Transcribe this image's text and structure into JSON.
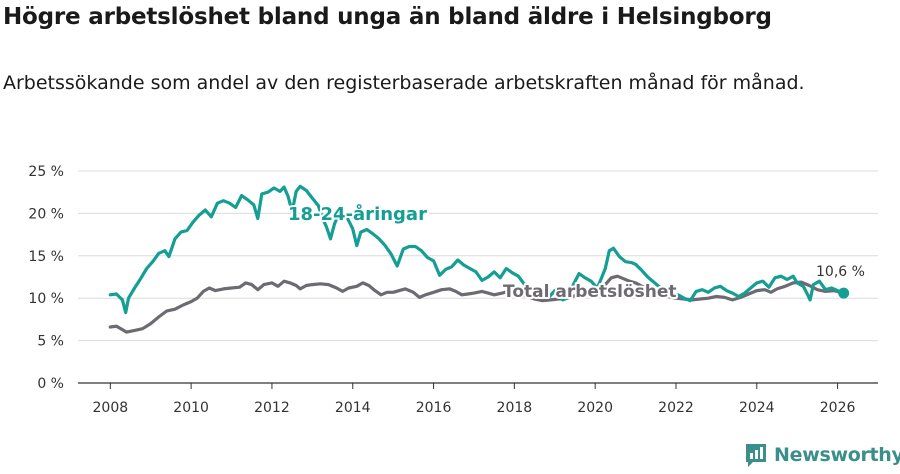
{
  "header": {
    "title": "Högre arbetslöshet bland unga än bland äldre i Helsingborg",
    "subtitle": "Arbetssökande som andel av den registerbaserade arbetskraften månad för månad."
  },
  "brand": {
    "name": "Newsworthy",
    "icon": "bar-chart-logo-icon"
  },
  "chart_data": {
    "type": "line",
    "title": "",
    "xlabel": "",
    "ylabel": "",
    "xlim": [
      2007.2,
      2027.0
    ],
    "ylim": [
      0,
      25
    ],
    "grid": true,
    "legend": "inline-labels",
    "x_ticks": [
      {
        "value": 2008,
        "label": "2008"
      },
      {
        "value": 2010,
        "label": "2010"
      },
      {
        "value": 2012,
        "label": "2012"
      },
      {
        "value": 2014,
        "label": "2014"
      },
      {
        "value": 2016,
        "label": "2016"
      },
      {
        "value": 2018,
        "label": "2018"
      },
      {
        "value": 2020,
        "label": "2020"
      },
      {
        "value": 2022,
        "label": "2022"
      },
      {
        "value": 2024,
        "label": "2024"
      },
      {
        "value": 2026,
        "label": "2026"
      }
    ],
    "y_ticks": [
      {
        "value": 0,
        "label": "0 %"
      },
      {
        "value": 5,
        "label": "5 %"
      },
      {
        "value": 10,
        "label": "10 %"
      },
      {
        "value": 15,
        "label": "15 %"
      },
      {
        "value": 20,
        "label": "20 %"
      },
      {
        "value": 25,
        "label": "25 %"
      }
    ],
    "series": [
      {
        "name": "18-24-åringar",
        "color": "#149e94",
        "end_label": "10,6 %",
        "points": [
          [
            2008.0,
            10.4
          ],
          [
            2008.15,
            10.5
          ],
          [
            2008.3,
            9.8
          ],
          [
            2008.38,
            8.3
          ],
          [
            2008.45,
            10.0
          ],
          [
            2008.6,
            11.2
          ],
          [
            2008.75,
            12.3
          ],
          [
            2008.9,
            13.5
          ],
          [
            2009.05,
            14.3
          ],
          [
            2009.2,
            15.3
          ],
          [
            2009.35,
            15.6
          ],
          [
            2009.45,
            14.9
          ],
          [
            2009.6,
            17.0
          ],
          [
            2009.75,
            17.8
          ],
          [
            2009.9,
            18.0
          ],
          [
            2010.05,
            19.0
          ],
          [
            2010.2,
            19.8
          ],
          [
            2010.35,
            20.4
          ],
          [
            2010.5,
            19.6
          ],
          [
            2010.65,
            21.2
          ],
          [
            2010.8,
            21.5
          ],
          [
            2010.95,
            21.2
          ],
          [
            2011.1,
            20.7
          ],
          [
            2011.25,
            22.1
          ],
          [
            2011.4,
            21.6
          ],
          [
            2011.55,
            21.0
          ],
          [
            2011.65,
            19.4
          ],
          [
            2011.75,
            22.3
          ],
          [
            2011.9,
            22.5
          ],
          [
            2012.05,
            23.0
          ],
          [
            2012.2,
            22.6
          ],
          [
            2012.3,
            23.1
          ],
          [
            2012.4,
            22.0
          ],
          [
            2012.5,
            20.2
          ],
          [
            2012.6,
            22.6
          ],
          [
            2012.7,
            23.2
          ],
          [
            2012.85,
            22.7
          ],
          [
            2013.0,
            21.8
          ],
          [
            2013.15,
            20.9
          ],
          [
            2013.25,
            19.5
          ],
          [
            2013.35,
            18.4
          ],
          [
            2013.45,
            17.0
          ],
          [
            2013.55,
            18.8
          ],
          [
            2013.7,
            20.4
          ],
          [
            2013.85,
            19.6
          ],
          [
            2014.0,
            18.2
          ],
          [
            2014.1,
            16.2
          ],
          [
            2014.2,
            17.8
          ],
          [
            2014.35,
            18.1
          ],
          [
            2014.5,
            17.6
          ],
          [
            2014.65,
            17.0
          ],
          [
            2014.8,
            16.2
          ],
          [
            2014.95,
            15.2
          ],
          [
            2015.1,
            13.8
          ],
          [
            2015.25,
            15.8
          ],
          [
            2015.4,
            16.1
          ],
          [
            2015.55,
            16.1
          ],
          [
            2015.7,
            15.6
          ],
          [
            2015.85,
            14.8
          ],
          [
            2016.0,
            14.4
          ],
          [
            2016.15,
            12.7
          ],
          [
            2016.3,
            13.4
          ],
          [
            2016.45,
            13.7
          ],
          [
            2016.6,
            14.5
          ],
          [
            2016.75,
            13.9
          ],
          [
            2016.9,
            13.5
          ],
          [
            2017.05,
            13.1
          ],
          [
            2017.2,
            12.1
          ],
          [
            2017.35,
            12.5
          ],
          [
            2017.5,
            13.1
          ],
          [
            2017.65,
            12.4
          ],
          [
            2017.8,
            13.5
          ],
          [
            2017.95,
            13.0
          ],
          [
            2018.1,
            12.6
          ],
          [
            2018.25,
            11.6
          ],
          [
            2018.4,
            11.2
          ],
          [
            2018.55,
            10.8
          ],
          [
            2018.7,
            10.4
          ],
          [
            2018.85,
            10.1
          ],
          [
            2019.0,
            10.9
          ],
          [
            2019.1,
            10.2
          ],
          [
            2019.2,
            9.8
          ],
          [
            2019.3,
            10.0
          ],
          [
            2019.45,
            11.5
          ],
          [
            2019.6,
            12.9
          ],
          [
            2019.75,
            12.4
          ],
          [
            2019.9,
            12.0
          ],
          [
            2020.05,
            11.2
          ],
          [
            2020.15,
            12.3
          ],
          [
            2020.25,
            13.5
          ],
          [
            2020.35,
            15.6
          ],
          [
            2020.45,
            15.9
          ],
          [
            2020.6,
            14.9
          ],
          [
            2020.75,
            14.3
          ],
          [
            2020.9,
            14.2
          ],
          [
            2021.0,
            14.0
          ],
          [
            2021.15,
            13.3
          ],
          [
            2021.3,
            12.5
          ],
          [
            2021.45,
            11.9
          ],
          [
            2021.6,
            11.3
          ],
          [
            2021.75,
            10.6
          ],
          [
            2021.9,
            10.2
          ],
          [
            2022.05,
            10.4
          ],
          [
            2022.2,
            10.0
          ],
          [
            2022.35,
            9.7
          ],
          [
            2022.5,
            10.8
          ],
          [
            2022.65,
            11.0
          ],
          [
            2022.8,
            10.7
          ],
          [
            2022.95,
            11.2
          ],
          [
            2023.1,
            11.4
          ],
          [
            2023.25,
            10.9
          ],
          [
            2023.4,
            10.6
          ],
          [
            2023.55,
            10.2
          ],
          [
            2023.7,
            10.6
          ],
          [
            2023.85,
            11.2
          ],
          [
            2024.0,
            11.8
          ],
          [
            2024.15,
            12.0
          ],
          [
            2024.3,
            11.3
          ],
          [
            2024.45,
            12.4
          ],
          [
            2024.6,
            12.6
          ],
          [
            2024.75,
            12.2
          ],
          [
            2024.9,
            12.6
          ],
          [
            2025.0,
            11.8
          ],
          [
            2025.15,
            11.4
          ],
          [
            2025.25,
            10.5
          ],
          [
            2025.32,
            9.8
          ],
          [
            2025.4,
            11.6
          ],
          [
            2025.55,
            12.0
          ],
          [
            2025.7,
            11.0
          ],
          [
            2025.85,
            11.2
          ],
          [
            2026.0,
            10.9
          ],
          [
            2026.15,
            10.6
          ]
        ]
      },
      {
        "name": "Total arbetslöshet",
        "color": "#6e6a72",
        "points": [
          [
            2008.0,
            6.6
          ],
          [
            2008.15,
            6.7
          ],
          [
            2008.3,
            6.3
          ],
          [
            2008.4,
            6.0
          ],
          [
            2008.6,
            6.2
          ],
          [
            2008.8,
            6.4
          ],
          [
            2009.0,
            7.0
          ],
          [
            2009.2,
            7.8
          ],
          [
            2009.4,
            8.5
          ],
          [
            2009.6,
            8.7
          ],
          [
            2009.8,
            9.2
          ],
          [
            2010.0,
            9.6
          ],
          [
            2010.15,
            10.0
          ],
          [
            2010.3,
            10.8
          ],
          [
            2010.45,
            11.2
          ],
          [
            2010.6,
            10.9
          ],
          [
            2010.8,
            11.1
          ],
          [
            2011.0,
            11.2
          ],
          [
            2011.2,
            11.3
          ],
          [
            2011.35,
            11.8
          ],
          [
            2011.5,
            11.6
          ],
          [
            2011.65,
            11.0
          ],
          [
            2011.8,
            11.6
          ],
          [
            2012.0,
            11.8
          ],
          [
            2012.15,
            11.4
          ],
          [
            2012.3,
            12.0
          ],
          [
            2012.45,
            11.8
          ],
          [
            2012.6,
            11.5
          ],
          [
            2012.7,
            11.1
          ],
          [
            2012.85,
            11.5
          ],
          [
            2013.0,
            11.6
          ],
          [
            2013.2,
            11.7
          ],
          [
            2013.4,
            11.6
          ],
          [
            2013.6,
            11.2
          ],
          [
            2013.75,
            10.8
          ],
          [
            2013.9,
            11.2
          ],
          [
            2014.1,
            11.4
          ],
          [
            2014.25,
            11.8
          ],
          [
            2014.4,
            11.5
          ],
          [
            2014.55,
            10.9
          ],
          [
            2014.7,
            10.4
          ],
          [
            2014.85,
            10.7
          ],
          [
            2015.0,
            10.7
          ],
          [
            2015.15,
            10.9
          ],
          [
            2015.3,
            11.1
          ],
          [
            2015.5,
            10.7
          ],
          [
            2015.65,
            10.1
          ],
          [
            2015.8,
            10.4
          ],
          [
            2016.0,
            10.7
          ],
          [
            2016.2,
            11.0
          ],
          [
            2016.4,
            11.1
          ],
          [
            2016.55,
            10.8
          ],
          [
            2016.7,
            10.4
          ],
          [
            2016.85,
            10.5
          ],
          [
            2017.0,
            10.6
          ],
          [
            2017.2,
            10.8
          ],
          [
            2017.35,
            10.6
          ],
          [
            2017.5,
            10.4
          ],
          [
            2017.7,
            10.6
          ],
          [
            2017.9,
            10.9
          ],
          [
            2018.1,
            10.7
          ],
          [
            2018.3,
            10.2
          ],
          [
            2018.5,
            9.9
          ],
          [
            2018.7,
            9.7
          ],
          [
            2018.9,
            9.8
          ],
          [
            2019.1,
            9.9
          ],
          [
            2019.3,
            10.0
          ],
          [
            2019.5,
            10.3
          ],
          [
            2019.7,
            10.6
          ],
          [
            2019.9,
            10.9
          ],
          [
            2020.1,
            11.2
          ],
          [
            2020.25,
            11.6
          ],
          [
            2020.4,
            12.4
          ],
          [
            2020.55,
            12.6
          ],
          [
            2020.7,
            12.3
          ],
          [
            2020.85,
            12.0
          ],
          [
            2021.0,
            11.8
          ],
          [
            2021.2,
            11.3
          ],
          [
            2021.4,
            10.9
          ],
          [
            2021.6,
            10.5
          ],
          [
            2021.8,
            10.2
          ],
          [
            2022.0,
            10.0
          ],
          [
            2022.2,
            9.9
          ],
          [
            2022.4,
            9.8
          ],
          [
            2022.6,
            9.9
          ],
          [
            2022.8,
            10.0
          ],
          [
            2023.0,
            10.2
          ],
          [
            2023.2,
            10.1
          ],
          [
            2023.4,
            9.8
          ],
          [
            2023.6,
            10.1
          ],
          [
            2023.8,
            10.5
          ],
          [
            2024.0,
            10.9
          ],
          [
            2024.2,
            11.0
          ],
          [
            2024.35,
            10.7
          ],
          [
            2024.5,
            11.1
          ],
          [
            2024.7,
            11.4
          ],
          [
            2024.9,
            11.8
          ],
          [
            2025.1,
            11.9
          ],
          [
            2025.3,
            11.5
          ],
          [
            2025.5,
            11.0
          ],
          [
            2025.7,
            10.8
          ],
          [
            2025.9,
            10.9
          ],
          [
            2026.15,
            10.6
          ]
        ]
      }
    ]
  }
}
